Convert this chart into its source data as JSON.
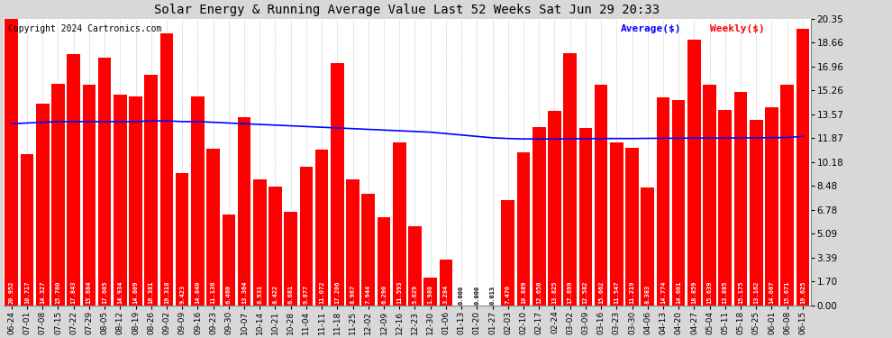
{
  "title": "Solar Energy & Running Average Value Last 52 Weeks Sat Jun 29 20:33",
  "copyright": "Copyright 2024 Cartronics.com",
  "bar_color": "#FF0000",
  "avg_line_color": "#0000FF",
  "weekly_legend_color": "#FF0000",
  "avg_legend_color": "#0000FF",
  "background_color": "#D8D8D8",
  "plot_bg_color": "#FFFFFF",
  "ylim": [
    0,
    20.35
  ],
  "yticks": [
    0.0,
    1.7,
    3.39,
    5.09,
    6.78,
    8.48,
    10.18,
    11.87,
    13.57,
    15.26,
    16.96,
    18.66,
    20.35
  ],
  "dates": [
    "06-24",
    "07-01",
    "07-08",
    "07-15",
    "07-22",
    "07-29",
    "08-05",
    "08-12",
    "08-19",
    "08-26",
    "09-02",
    "09-09",
    "09-16",
    "09-23",
    "09-30",
    "10-07",
    "10-14",
    "10-21",
    "10-28",
    "11-04",
    "11-11",
    "11-18",
    "11-25",
    "12-02",
    "12-09",
    "12-16",
    "12-23",
    "12-30",
    "01-06",
    "01-13",
    "01-20",
    "01-27",
    "02-03",
    "02-10",
    "02-17",
    "02-24",
    "03-02",
    "03-09",
    "03-16",
    "03-23",
    "03-30",
    "04-06",
    "04-13",
    "04-20",
    "04-27",
    "05-04",
    "05-11",
    "05-18",
    "05-25",
    "06-01",
    "06-08",
    "06-15"
  ],
  "weekly_values": [
    20.952,
    10.717,
    14.327,
    15.76,
    17.843,
    15.684,
    17.605,
    14.934,
    14.809,
    16.381,
    19.318,
    9.423,
    14.84,
    11.136,
    6.46,
    13.364,
    8.931,
    8.422,
    6.681,
    9.877,
    11.072,
    17.206,
    8.967,
    7.944,
    6.29,
    11.593,
    5.629,
    1.98,
    3.284,
    0.0,
    0.0,
    0.013,
    7.47,
    10.889,
    12.656,
    13.825,
    17.899,
    12.582,
    15.662,
    11.547,
    11.219,
    8.383,
    14.774,
    14.601,
    18.859,
    15.639,
    13.885,
    15.175,
    13.162,
    14.067,
    15.671,
    19.625
  ],
  "avg_values": [
    12.9,
    12.95,
    13.0,
    13.05,
    13.05,
    13.05,
    13.05,
    13.05,
    13.05,
    13.1,
    13.1,
    13.05,
    13.05,
    13.0,
    12.95,
    12.9,
    12.85,
    12.8,
    12.75,
    12.7,
    12.65,
    12.6,
    12.55,
    12.5,
    12.45,
    12.4,
    12.35,
    12.3,
    12.2,
    12.1,
    12.0,
    11.9,
    11.85,
    11.82,
    11.82,
    11.82,
    11.83,
    11.84,
    11.85,
    11.85,
    11.85,
    11.86,
    11.87,
    11.87,
    11.88,
    11.88,
    11.88,
    11.89,
    11.9,
    11.91,
    11.92,
    12.0
  ]
}
